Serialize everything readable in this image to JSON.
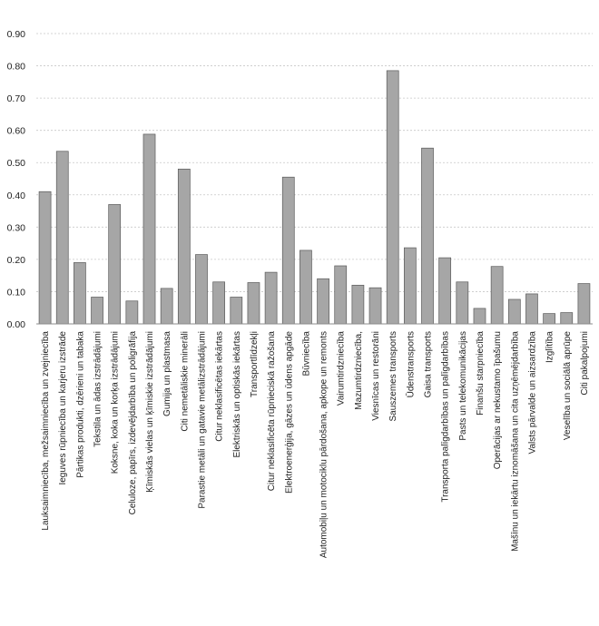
{
  "chart_data": {
    "type": "bar",
    "categories": [
      "Lauksaimniecība, mežsaimniecība un zvejniecība",
      "Ieguves rūpniecība un karjeru izstrāde",
      "Pārtikas produkti, dzērieni un tabaka",
      "Tekstila un ādas izstrādājumi",
      "Koksne, koka un korķa izstrādājumi",
      "Celuloze, papīrs, izdevējdarbība un poligrāfija",
      "Ķīmiskās vielas un ķīmiskie izstrādājumi",
      "Gumija un plastmasa",
      "Citi nemetāliskie minerāli",
      "Parastie metāli un gatavie metālizstrādājumi",
      "Citur neklasificētas iekārtas",
      "Elektriskās un optiskās iekārtas",
      "Transportlīdzekļi",
      "Citur neklasificēta rūpnieciskā ražošana",
      "Elektroenerģija, gāzes un ūdens apgāde",
      "Būvniecība",
      "Automobiļu un motociklu pārdošana, apkope un remonts",
      "Vairumtirdzniecība",
      "Mazumtirdzniecība,",
      "Viesnīcas un restorāni",
      "Sauszemes transports",
      "Ūdenstransports",
      "Gaisa transports",
      "Transporta palīgdarbības un palīgdarbības",
      "Pasts un telekomunikācijas",
      "Finanšu starpniecība",
      "Operācijas ar nekustamo īpašumu",
      "Mašīnu un iekārtu iznomāšana un cita uzņēmējdarbība",
      "Valsts pārvalde un aizsardzība",
      "Izglītība",
      "Veselība un sociālā aprūpe",
      "Citi pakalpojumi"
    ],
    "values": [
      0.41,
      0.535,
      0.19,
      0.083,
      0.37,
      0.071,
      0.588,
      0.11,
      0.48,
      0.215,
      0.13,
      0.083,
      0.128,
      0.16,
      0.455,
      0.228,
      0.14,
      0.18,
      0.12,
      0.112,
      0.785,
      0.236,
      0.545,
      0.205,
      0.13,
      0.048,
      0.178,
      0.076,
      0.093,
      0.032,
      0.035,
      0.125
    ],
    "ylim": [
      0,
      0.9
    ],
    "yticks": [
      "0.00",
      "0.10",
      "0.20",
      "0.30",
      "0.40",
      "0.50",
      "0.60",
      "0.70",
      "0.80",
      "0.90"
    ],
    "grid": true,
    "title": "",
    "xlabel": "",
    "ylabel": "",
    "colors": {
      "bar_fill": "#a6a6a6",
      "bar_stroke": "#5a5a5a",
      "grid": "#c8c8c8"
    }
  }
}
